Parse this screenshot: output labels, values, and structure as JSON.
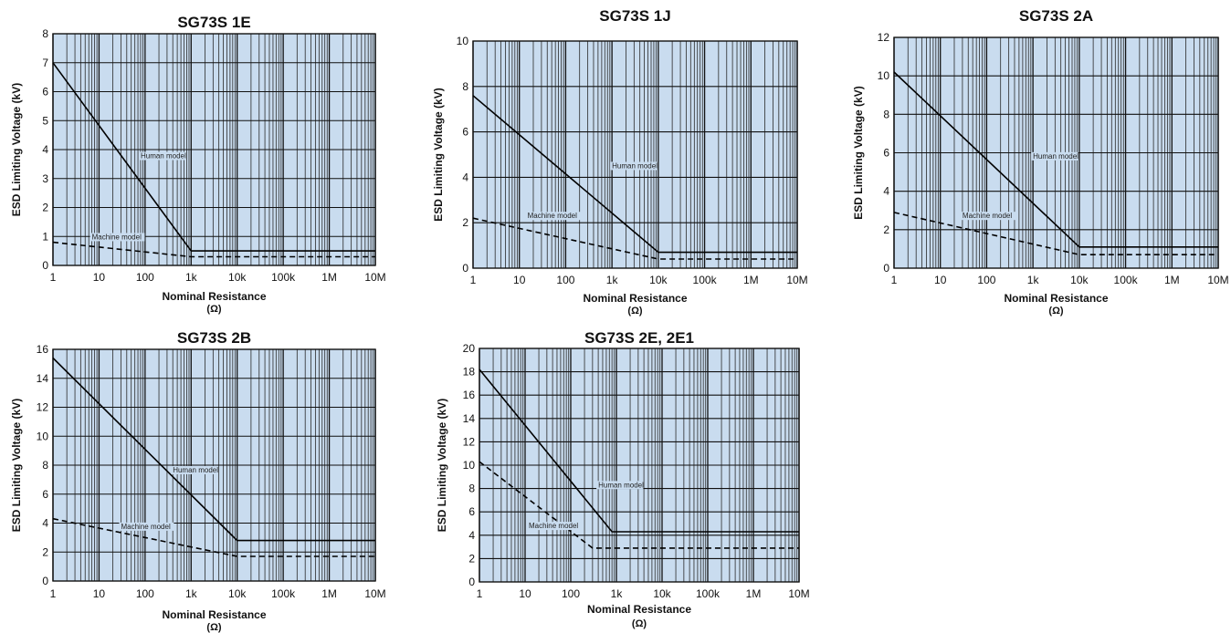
{
  "chart_data": [
    {
      "type": "line",
      "title": "SG73S 1E",
      "xlabel": "Nominal Resistance",
      "xunit": "(Ω)",
      "ylabel": "ESD Limiting Voltage (kV)",
      "xscale": "log",
      "xlim": [
        1,
        10000000
      ],
      "ylim": [
        0,
        8
      ],
      "xticks": [
        1,
        10,
        100,
        1000,
        10000,
        100000,
        1000000,
        10000000
      ],
      "xtick_labels": [
        "1",
        "10",
        "100",
        "1k",
        "10k",
        "100k",
        "1M",
        "10M"
      ],
      "yticks": [
        0,
        1,
        2,
        3,
        4,
        5,
        6,
        7,
        8
      ],
      "ytick_labels": [
        "0",
        "1",
        "2",
        "3",
        "4",
        "5",
        "6",
        "7",
        "8"
      ],
      "grid": true,
      "series": [
        {
          "name": "Human model",
          "style": "solid",
          "x": [
            1,
            1000,
            10000000
          ],
          "y": [
            7,
            0.5,
            0.5
          ]
        },
        {
          "name": "Machine model",
          "style": "dashed",
          "x": [
            1,
            1000,
            10000000
          ],
          "y": [
            0.8,
            0.3,
            0.3
          ]
        }
      ],
      "annotations": [
        {
          "text": "Human model",
          "x": 80,
          "y": 3.7
        },
        {
          "text": "Machine model",
          "x": 7,
          "y": 0.9
        }
      ]
    },
    {
      "type": "line",
      "title": "SG73S 1J",
      "xlabel": "Nominal Resistance",
      "xunit": "(Ω)",
      "ylabel": "ESD Limiting Voltage (kV)",
      "xscale": "log",
      "xlim": [
        1,
        10000000
      ],
      "ylim": [
        0,
        10
      ],
      "xticks": [
        1,
        10,
        100,
        1000,
        10000,
        100000,
        1000000,
        10000000
      ],
      "xtick_labels": [
        "1",
        "10",
        "100",
        "1k",
        "10k",
        "100k",
        "1M",
        "10M"
      ],
      "yticks": [
        0,
        2,
        4,
        6,
        8,
        10
      ],
      "ytick_labels": [
        "0",
        "2",
        "4",
        "6",
        "8",
        "10"
      ],
      "grid": true,
      "series": [
        {
          "name": "Human model",
          "style": "solid",
          "x": [
            1,
            10000,
            10000000
          ],
          "y": [
            7.6,
            0.7,
            0.7
          ]
        },
        {
          "name": "Machine model",
          "style": "dashed",
          "x": [
            1,
            10000,
            10000000
          ],
          "y": [
            2.2,
            0.4,
            0.4
          ]
        }
      ],
      "annotations": [
        {
          "text": "Human model",
          "x": 1000,
          "y": 4.4
        },
        {
          "text": "Machine model",
          "x": 15,
          "y": 2.2
        }
      ]
    },
    {
      "type": "line",
      "title": "SG73S 2A",
      "xlabel": "Nominal Resistance",
      "xunit": "(Ω)",
      "ylabel": "ESD Limiting Voltage (kV)",
      "xscale": "log",
      "xlim": [
        1,
        10000000
      ],
      "ylim": [
        0,
        12
      ],
      "xticks": [
        1,
        10,
        100,
        1000,
        10000,
        100000,
        1000000,
        10000000
      ],
      "xtick_labels": [
        "1",
        "10",
        "100",
        "1k",
        "10k",
        "100k",
        "1M",
        "10M"
      ],
      "yticks": [
        0,
        2,
        4,
        6,
        8,
        10,
        12
      ],
      "ytick_labels": [
        "0",
        "2",
        "4",
        "6",
        "8",
        "10",
        "12"
      ],
      "grid": true,
      "series": [
        {
          "name": "Human model",
          "style": "solid",
          "x": [
            1,
            10000,
            10000000
          ],
          "y": [
            10.2,
            1.1,
            1.1
          ]
        },
        {
          "name": "Machine model",
          "style": "dashed",
          "x": [
            1,
            10000,
            10000000
          ],
          "y": [
            2.9,
            0.7,
            0.7
          ]
        }
      ],
      "annotations": [
        {
          "text": "Human model",
          "x": 1000,
          "y": 5.7
        },
        {
          "text": "Machine model",
          "x": 30,
          "y": 2.6
        }
      ]
    },
    {
      "type": "line",
      "title": "SG73S 2B",
      "xlabel": "Nominal Resistance",
      "xunit": "(Ω)",
      "ylabel": "ESD Limiting Voltage (kV)",
      "xscale": "log",
      "xlim": [
        1,
        10000000
      ],
      "ylim": [
        0,
        16
      ],
      "xticks": [
        1,
        10,
        100,
        1000,
        10000,
        100000,
        1000000,
        10000000
      ],
      "xtick_labels": [
        "1",
        "10",
        "100",
        "1k",
        "10k",
        "100k",
        "1M",
        "10M"
      ],
      "yticks": [
        0,
        2,
        4,
        6,
        8,
        10,
        12,
        14,
        16
      ],
      "ytick_labels": [
        "0",
        "2",
        "4",
        "6",
        "8",
        "10",
        "12",
        "14",
        "16"
      ],
      "grid": true,
      "series": [
        {
          "name": "Human model",
          "style": "solid",
          "x": [
            1,
            10000,
            10000000
          ],
          "y": [
            15.4,
            2.8,
            2.8
          ]
        },
        {
          "name": "Machine model",
          "style": "dashed",
          "x": [
            1,
            10000,
            10000000
          ],
          "y": [
            4.3,
            1.7,
            1.7
          ]
        }
      ],
      "annotations": [
        {
          "text": "Human model",
          "x": 400,
          "y": 7.5
        },
        {
          "text": "Machine model",
          "x": 30,
          "y": 3.6
        }
      ]
    },
    {
      "type": "line",
      "title": "SG73S 2E, 2E1",
      "xlabel": "Nominal Resistance",
      "xunit": "(Ω)",
      "ylabel": "ESD Limiting Voltage (kV)",
      "xscale": "log",
      "xlim": [
        1,
        10000000
      ],
      "ylim": [
        0,
        20
      ],
      "xticks": [
        1,
        10,
        100,
        1000,
        10000,
        100000,
        1000000,
        10000000
      ],
      "xtick_labels": [
        "1",
        "10",
        "100",
        "1k",
        "10k",
        "100k",
        "1M",
        "10M"
      ],
      "yticks": [
        0,
        2,
        4,
        6,
        8,
        10,
        12,
        14,
        16,
        18,
        20
      ],
      "ytick_labels": [
        "0",
        "2",
        "4",
        "6",
        "8",
        "10",
        "12",
        "14",
        "16",
        "18",
        "20"
      ],
      "grid": true,
      "series": [
        {
          "name": "Human model",
          "style": "solid",
          "x": [
            1,
            800,
            10000000
          ],
          "y": [
            18.2,
            4.3,
            4.3
          ]
        },
        {
          "name": "Machine model",
          "style": "dashed",
          "x": [
            1,
            300,
            10000000
          ],
          "y": [
            10.3,
            2.9,
            2.9
          ]
        }
      ],
      "annotations": [
        {
          "text": "Human model",
          "x": 400,
          "y": 8.1
        },
        {
          "text": "Machine model",
          "x": 12,
          "y": 4.6
        }
      ]
    }
  ]
}
